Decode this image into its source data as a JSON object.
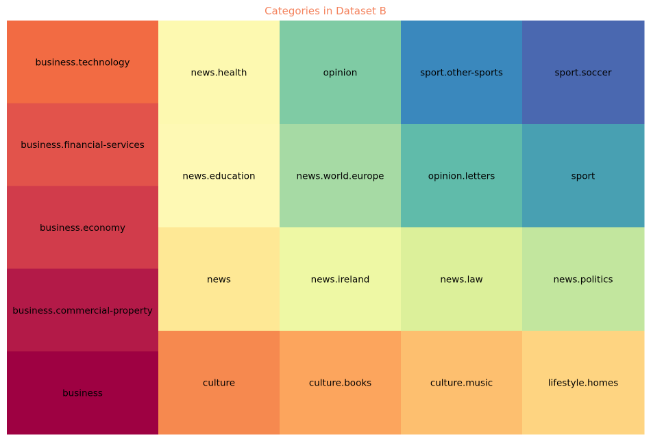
{
  "chart_data": {
    "type": "treemap",
    "title": "Categories in Dataset B",
    "title_color": "#f4845f",
    "columns": [
      {
        "cells": [
          {
            "label": "business.technology",
            "value": 1,
            "color": "#f26b43"
          },
          {
            "label": "business.financial-services",
            "value": 1,
            "color": "#e2534b"
          },
          {
            "label": "business.economy",
            "value": 1,
            "color": "#d13c4b"
          },
          {
            "label": "business.commercial-property",
            "value": 1,
            "color": "#b31a48"
          },
          {
            "label": "business",
            "value": 1,
            "color": "#9e0142"
          }
        ]
      },
      {
        "cells": [
          {
            "label": "news.health",
            "value": 1,
            "color": "#fdf9b0"
          },
          {
            "label": "news.education",
            "value": 1,
            "color": "#fef9b4"
          },
          {
            "label": "news",
            "value": 1,
            "color": "#fee895"
          },
          {
            "label": "culture",
            "value": 1,
            "color": "#f6894f"
          }
        ]
      },
      {
        "cells": [
          {
            "label": "opinion",
            "value": 1,
            "color": "#7fcba4"
          },
          {
            "label": "news.world.europe",
            "value": 1,
            "color": "#a6daa4"
          },
          {
            "label": "news.ireland",
            "value": 1,
            "color": "#eef8a4"
          },
          {
            "label": "culture.books",
            "value": 1,
            "color": "#fca55d"
          }
        ]
      },
      {
        "cells": [
          {
            "label": "sport.other-sports",
            "value": 1,
            "color": "#3a88bd"
          },
          {
            "label": "opinion.letters",
            "value": 1,
            "color": "#60bbaa"
          },
          {
            "label": "news.law",
            "value": 1,
            "color": "#dcf09a"
          },
          {
            "label": "culture.music",
            "value": 1,
            "color": "#fdbf6f"
          }
        ]
      },
      {
        "cells": [
          {
            "label": "sport.soccer",
            "value": 1,
            "color": "#4a68b0"
          },
          {
            "label": "sport",
            "value": 1,
            "color": "#48a0b2"
          },
          {
            "label": "news.politics",
            "value": 1,
            "color": "#c2e69e"
          },
          {
            "label": "lifestyle.homes",
            "value": 1,
            "color": "#fed481"
          }
        ]
      }
    ]
  }
}
